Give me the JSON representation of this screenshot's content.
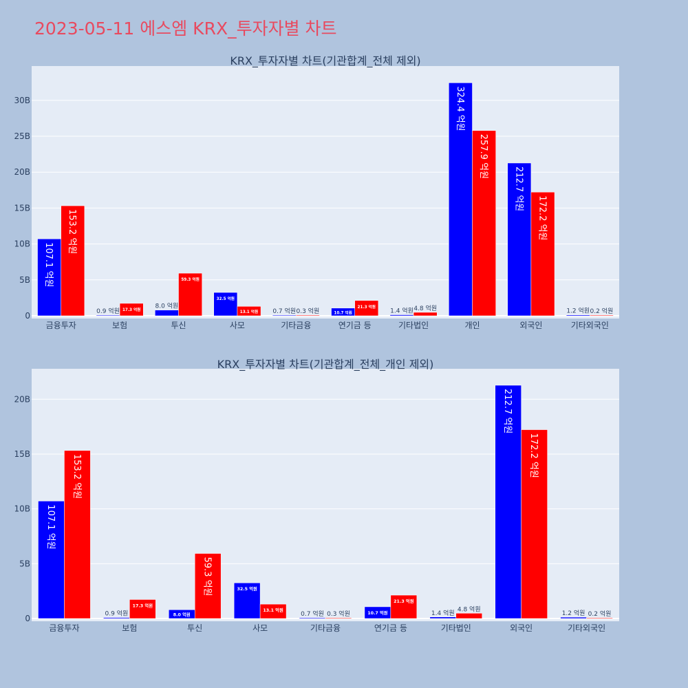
{
  "title": "2023-05-11 에스엠 KRX_투자자별 차트",
  "colors": {
    "series1": "#0000ff",
    "series2": "#ff0000",
    "plot_bg": "#e5ecf6",
    "page_bg": "#b0c4de",
    "title": "#e84a5f"
  },
  "chart_data": [
    {
      "type": "bar",
      "title": "KRX_투자자별 차트(기관합계_전체 제외)",
      "categories": [
        "금융투자",
        "보험",
        "투신",
        "사모",
        "기타금융",
        "연기금 등",
        "기타법인",
        "개인",
        "외국인",
        "기타외국인"
      ],
      "series": [
        {
          "values": [
            10710000000,
            90000000,
            800000000,
            3250000000,
            70000000,
            1070000000,
            140000000,
            32440000000,
            21270000000,
            120000000
          ],
          "labels": [
            "107.1 억원",
            "0.9 억원",
            "8.0 억원",
            "32.5 억원",
            "0.7 억원",
            "10.7 억원",
            "1.4 억원",
            "324.4 억원",
            "212.7 억원",
            "1.2 억원"
          ]
        },
        {
          "values": [
            15320000000,
            1730000000,
            5930000000,
            1310000000,
            30000000,
            2130000000,
            480000000,
            25790000000,
            17220000000,
            20000000
          ],
          "labels": [
            "153.2 억원",
            "17.3 억원",
            "59.3 억원",
            "13.1 억원",
            "0.3 억원",
            "21.3 억원",
            "4.8 억원",
            "257.9 억원",
            "172.2 억원",
            "0.2 억원"
          ]
        }
      ],
      "yticks": [
        0,
        5000000000,
        10000000000,
        15000000000,
        20000000000,
        25000000000,
        30000000000
      ],
      "ytick_labels": [
        "0",
        "5B",
        "10B",
        "15B",
        "20B",
        "25B",
        "30B"
      ],
      "ylim": [
        0,
        34200000000
      ],
      "grid": true,
      "legend": "none"
    },
    {
      "type": "bar",
      "title": "KRX_투자자별 차트(기관합계_전체_개인 제외)",
      "categories": [
        "금융투자",
        "보험",
        "투신",
        "사모",
        "기타금융",
        "연기금 등",
        "기타법인",
        "외국인",
        "기타외국인"
      ],
      "series": [
        {
          "values": [
            10710000000,
            90000000,
            800000000,
            3250000000,
            70000000,
            1070000000,
            140000000,
            21270000000,
            120000000
          ],
          "labels": [
            "107.1 억원",
            "0.9 억원",
            "8.0 억원",
            "32.5 억원",
            "0.7 억원",
            "10.7 억원",
            "1.4 억원",
            "212.7 억원",
            "1.2 억원"
          ]
        },
        {
          "values": [
            15320000000,
            1730000000,
            5930000000,
            1310000000,
            30000000,
            2130000000,
            480000000,
            17220000000,
            20000000
          ],
          "labels": [
            "153.2 억원",
            "17.3 억원",
            "59.3 억원",
            "13.1 억원",
            "0.3 억원",
            "21.3 억원",
            "4.8 억원",
            "172.2 억원",
            "0.2 억원"
          ]
        }
      ],
      "yticks": [
        0,
        5000000000,
        10000000000,
        15000000000,
        20000000000
      ],
      "ytick_labels": [
        "0",
        "5B",
        "10B",
        "15B",
        "20B"
      ],
      "ylim": [
        0,
        22400000000
      ],
      "grid": true,
      "legend": "none"
    }
  ]
}
